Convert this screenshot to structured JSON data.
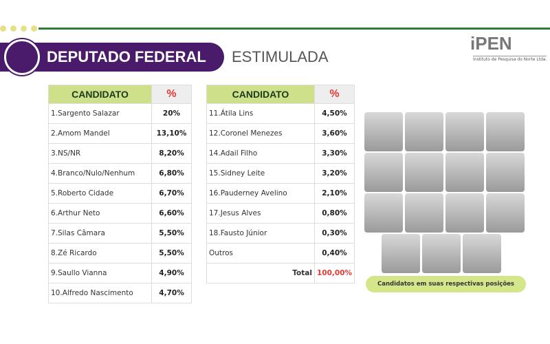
{
  "header": {
    "title": "DEPUTADO FEDERAL",
    "subtitle": "ESTIMULADA"
  },
  "logo": {
    "name": "iPEN",
    "tagline": "Instituto de Pesquisa do Norte Ltda."
  },
  "table_left": {
    "columns": [
      "CANDIDATO",
      "%"
    ],
    "rows": [
      [
        "1.Sargento Salazar",
        "20%"
      ],
      [
        "2.Amom Mandel",
        "13,10%"
      ],
      [
        "3.NS/NR",
        "8,20%"
      ],
      [
        "4.Branco/Nulo/Nenhum",
        "6,80%"
      ],
      [
        "5.Roberto Cidade",
        "6,70%"
      ],
      [
        "6.Arthur Neto",
        "6,60%"
      ],
      [
        "7.Silas Câmara",
        "5,50%"
      ],
      [
        "8.Zé Ricardo",
        "5,50%"
      ],
      [
        "9.Saullo Vianna",
        "4,90%"
      ],
      [
        "10.Alfredo Nascimento",
        "4,70%"
      ]
    ]
  },
  "table_right": {
    "columns": [
      "CANDIDATO",
      "%"
    ],
    "rows": [
      [
        "11.Átila Lins",
        "4,50%"
      ],
      [
        "12.Coronel Menezes",
        "3,60%"
      ],
      [
        "14.Adail Filho",
        "3,30%"
      ],
      [
        "15.Sidney Leite",
        "3,20%"
      ],
      [
        "16.Pauderney Avelino",
        "2,10%"
      ],
      [
        "17.Jesus Alves",
        "0,80%"
      ],
      [
        "18.Fausto Júnior",
        "0,30%"
      ],
      [
        "Outros",
        "0,40%"
      ]
    ],
    "total": [
      "Total",
      "100,00%"
    ]
  },
  "caption": "Candidatos em suas respectivas posições"
}
